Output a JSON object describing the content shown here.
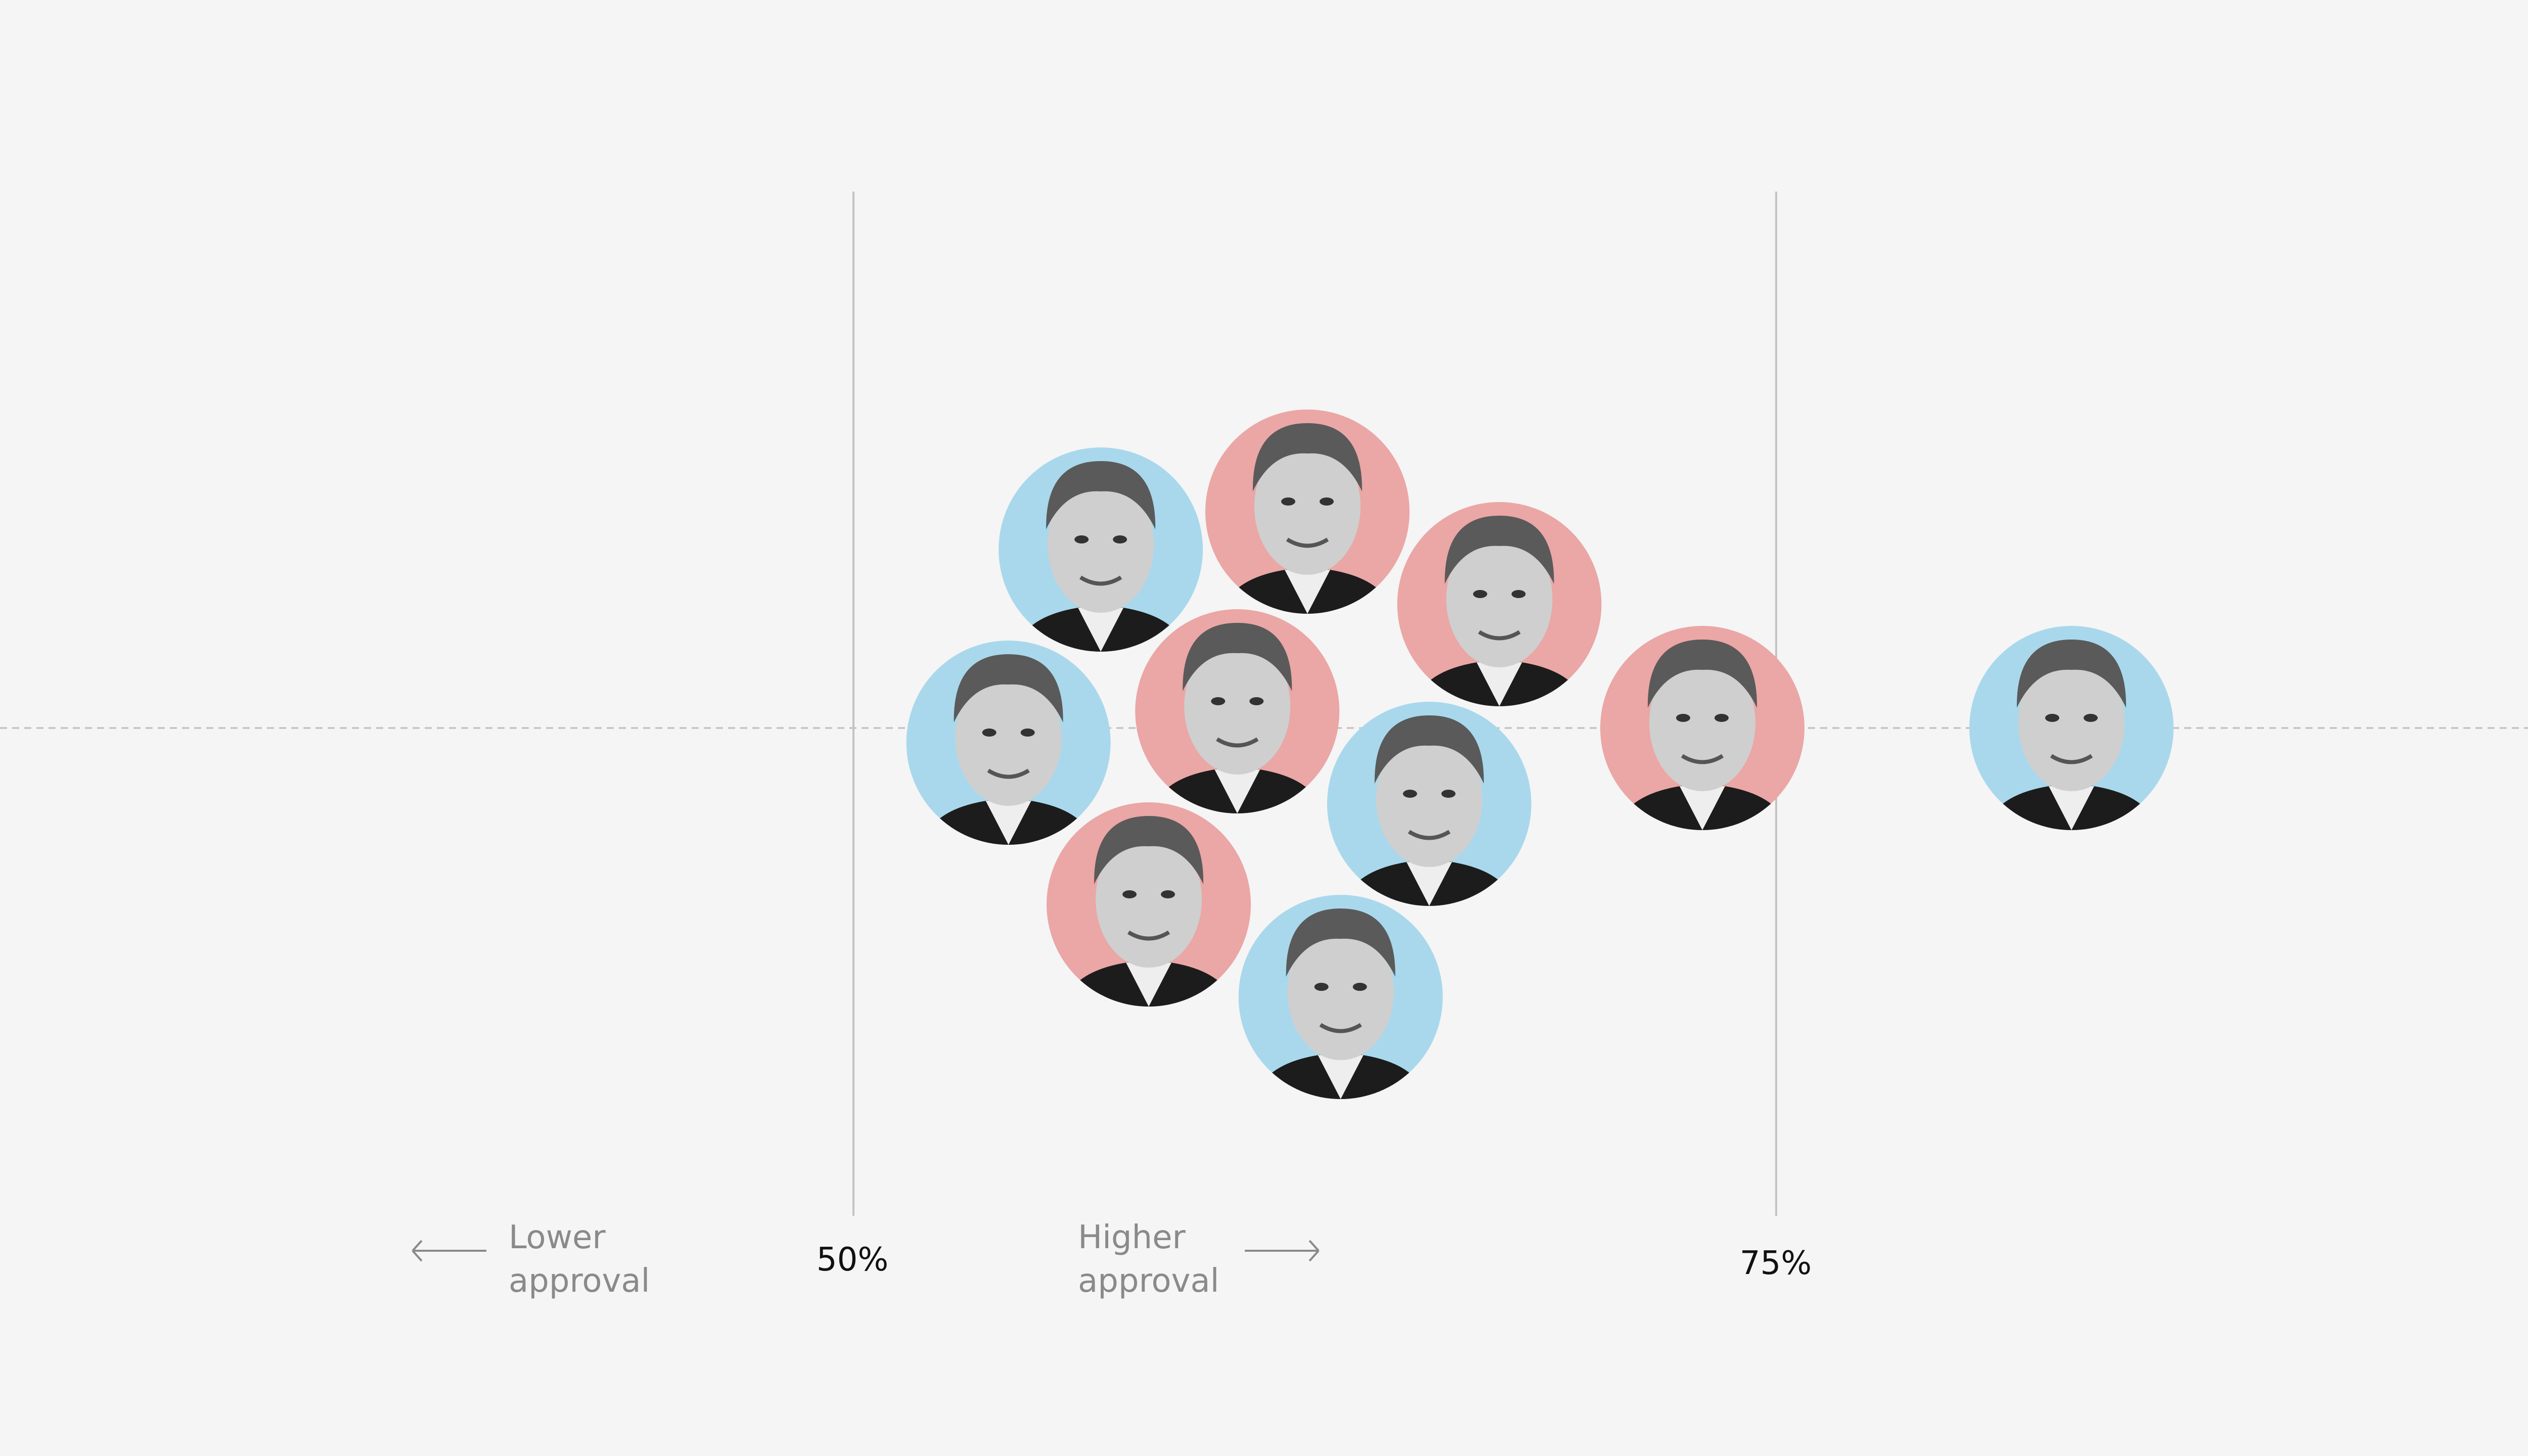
{
  "chart_data": {
    "type": "scatter",
    "subtype": "beeswarm",
    "xlabel_left": "Lower approval",
    "xlabel_right": "Higher approval",
    "xlim": [
      27,
      97
    ],
    "ticks": [
      {
        "value": 50,
        "label": "50%"
      },
      {
        "value": 75,
        "label": "75%"
      }
    ],
    "grid": "vertical lines at ticks; dashed horizontal baseline",
    "colors": {
      "democrat": "#a9d8ec",
      "republican": "#eba6a6",
      "background": "#f5f5f5"
    },
    "points": [
      {
        "party": "democrat",
        "value": 56.7
      },
      {
        "party": "republican",
        "value": 62.3
      },
      {
        "party": "republican",
        "value": 67.5
      },
      {
        "party": "democrat",
        "value": 54.2
      },
      {
        "party": "republican",
        "value": 60.4
      },
      {
        "party": "democrat",
        "value": 65.6
      },
      {
        "party": "republican",
        "value": 73.0
      },
      {
        "party": "democrat",
        "value": 83.0
      },
      {
        "party": "republican",
        "value": 58.0
      },
      {
        "party": "democrat",
        "value": 63.2
      }
    ]
  }
}
